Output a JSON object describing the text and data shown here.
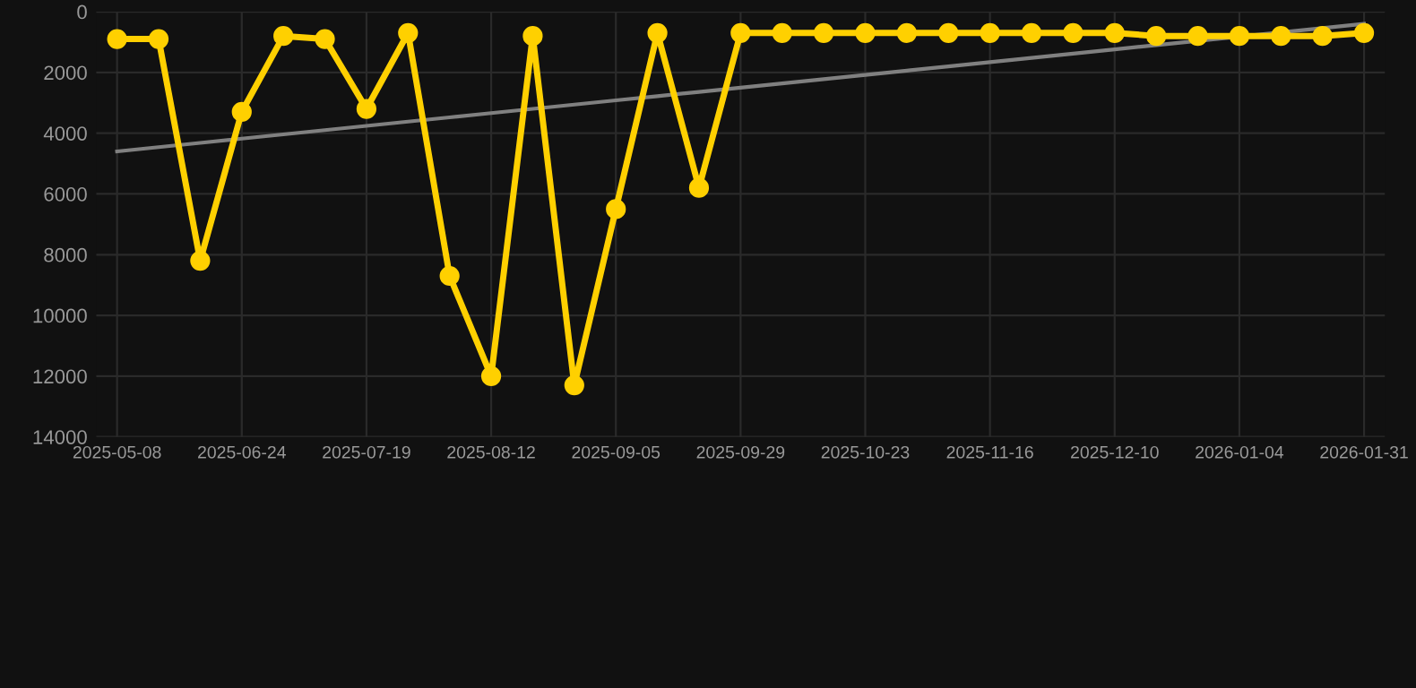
{
  "chart_data": {
    "type": "line",
    "categories": [
      "2025-05-08",
      null,
      null,
      "2025-06-24",
      null,
      null,
      "2025-07-19",
      null,
      null,
      "2025-08-12",
      null,
      null,
      "2025-09-05",
      null,
      null,
      "2025-09-29",
      null,
      null,
      "2025-10-23",
      null,
      null,
      "2025-11-16",
      null,
      null,
      "2025-12-10",
      null,
      null,
      "2026-01-04",
      null,
      null,
      "2026-01-31"
    ],
    "series": [
      {
        "color": "#ffd000",
        "marker": "circle",
        "values": [
          900,
          900,
          8200,
          3300,
          800,
          900,
          3200,
          700,
          8700,
          12000,
          800,
          12300,
          6500,
          700,
          5800,
          700,
          700,
          700,
          700,
          700,
          700,
          700,
          700,
          700,
          700,
          800,
          800,
          800,
          800,
          800,
          700
        ]
      },
      {
        "type": "line",
        "color": "#808080",
        "marker": "none",
        "values": [
          4600,
          4460,
          4320,
          4180,
          4040,
          3900,
          3760,
          3620,
          3480,
          3340,
          3200,
          3060,
          2920,
          2780,
          2640,
          2500,
          2360,
          2220,
          2080,
          1940,
          1800,
          1660,
          1520,
          1380,
          1240,
          1100,
          960,
          820,
          680,
          540,
          400
        ]
      }
    ],
    "ylim": [
      14000,
      0
    ],
    "yticks": [
      0,
      2000,
      4000,
      6000,
      8000,
      10000,
      12000,
      14000
    ],
    "grid": true
  }
}
